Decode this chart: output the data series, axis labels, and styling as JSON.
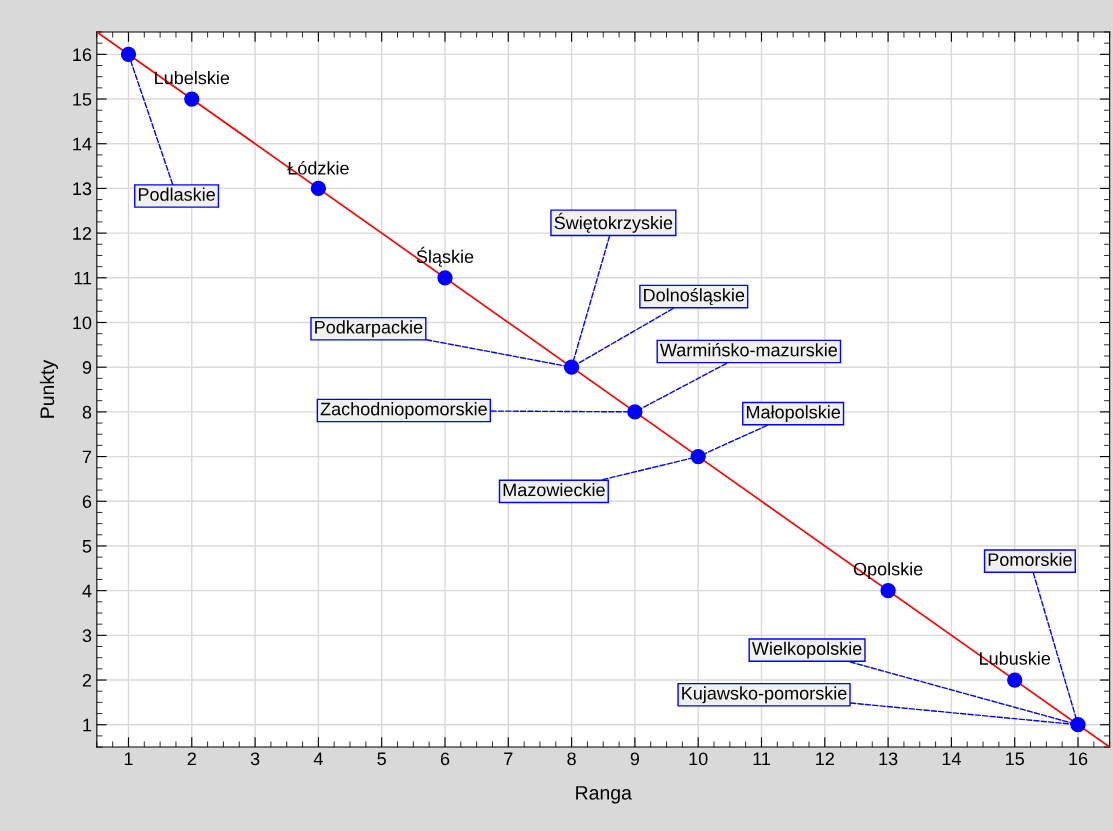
{
  "chart_data": {
    "type": "scatter",
    "xlabel": "Ranga",
    "ylabel": "Punkty",
    "xlim": [
      0.5,
      16.5
    ],
    "ylim": [
      0.5,
      16.5
    ],
    "xticks": [
      1,
      2,
      3,
      4,
      5,
      6,
      7,
      8,
      9,
      10,
      11,
      12,
      13,
      14,
      15,
      16
    ],
    "yticks": [
      1,
      2,
      3,
      4,
      5,
      6,
      7,
      8,
      9,
      10,
      11,
      12,
      13,
      14,
      15,
      16
    ],
    "grid": true,
    "series": [
      {
        "marker": "circle",
        "color": "#0000ff",
        "x": [
          1,
          2,
          4,
          6,
          8,
          9,
          10,
          13,
          15,
          16
        ],
        "values": [
          16,
          15,
          13,
          11,
          9,
          8,
          7,
          4,
          2,
          1
        ]
      },
      {
        "type": "line",
        "color": "#ff0000",
        "marker": "none",
        "line_style": "solid",
        "x": [
          0.5,
          16.5
        ],
        "values": [
          16.5,
          0.5
        ]
      }
    ],
    "annotations": [
      {
        "text": "Podlaskie",
        "x": 1,
        "y": 16
      },
      {
        "text": "Lubelskie",
        "x": 2,
        "y": 15
      },
      {
        "text": "Łódzkie",
        "x": 4,
        "y": 13
      },
      {
        "text": "Śląskie",
        "x": 6,
        "y": 11
      },
      {
        "text": "Świętokrzyskie",
        "x": 8,
        "y": 9
      },
      {
        "text": "Dolnośląskie",
        "x": 8,
        "y": 9
      },
      {
        "text": "Podkarpackie",
        "x": 8,
        "y": 9
      },
      {
        "text": "Warmińsko-mazurskie",
        "x": 9,
        "y": 8
      },
      {
        "text": "Zachodniopomorskie",
        "x": 9,
        "y": 8
      },
      {
        "text": "Małopolskie",
        "x": 10,
        "y": 7
      },
      {
        "text": "Mazowieckie",
        "x": 10,
        "y": 7
      },
      {
        "text": "Opolskie",
        "x": 13,
        "y": 4
      },
      {
        "text": "Pomorskie",
        "x": 16,
        "y": 1
      },
      {
        "text": "Wielkopolskie",
        "x": 16,
        "y": 1
      },
      {
        "text": "Lubuskie",
        "x": 15,
        "y": 2
      },
      {
        "text": "Kujawsko-pomorskie",
        "x": 16,
        "y": 1
      }
    ]
  }
}
